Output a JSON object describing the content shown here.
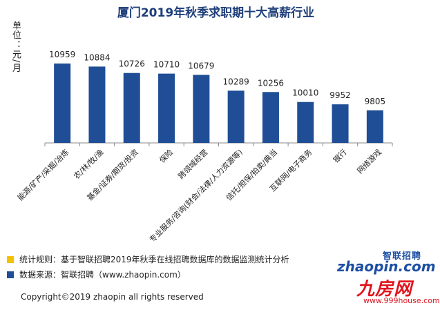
{
  "chart_data": {
    "type": "bar",
    "title": "厦门2019年秋季求职期十大高薪行业",
    "ylabel": "单位：元/月",
    "xlabel": "",
    "categories": [
      "能源/矿产/采掘/冶炼",
      "农/林/牧/渔",
      "基金/证券/期货/投资",
      "保险",
      "跨领域经营",
      "专业服务/咨询(财会/法律/人力资源等)",
      "信托/担保/拍卖/典当",
      "互联网/电子商务",
      "银行",
      "网络游戏"
    ],
    "values": [
      10959,
      10884,
      10726,
      10710,
      10679,
      10289,
      10256,
      10010,
      9952,
      9805
    ],
    "ylim": [
      9000,
      11300
    ],
    "bar_color": "#1f4e96",
    "grid": false
  },
  "notes": {
    "rule": "统计规则：基于智联招聘2019年秋季在线招聘数据库的数据监测统计分析",
    "rule_color": "#f2c200",
    "source": "数据来源：智联招聘（www.zhaopin.com）",
    "source_color": "#1f4e96"
  },
  "copyright": "Copyright©2019 zhaopin all rights reserved",
  "brand_logo": {
    "cn": "智联招聘",
    "en": "zhaopin.com"
  },
  "site_logo": {
    "cn": "九房网",
    "url": "www.999house.com"
  }
}
